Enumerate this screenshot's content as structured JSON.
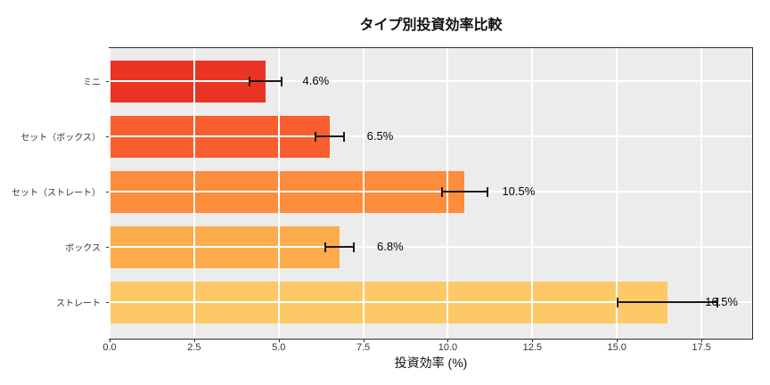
{
  "chart_data": {
    "type": "bar",
    "orientation": "horizontal",
    "title": "タイプ別投資効率比較",
    "xlabel": "投資効率 (%)",
    "ylabel": "",
    "categories": [
      "ミニ",
      "セット（ボックス）",
      "セット（ストレート）",
      "ボックス",
      "ストレート"
    ],
    "values": [
      4.6,
      6.5,
      10.5,
      6.8,
      16.5
    ],
    "errors": [
      0.5,
      0.45,
      0.7,
      0.45,
      1.5
    ],
    "value_labels": [
      "4.6%",
      "6.5%",
      "10.5%",
      "6.8%",
      "16.5%"
    ],
    "bar_colors": [
      "#EA3423",
      "#F95F2E",
      "#FB8D3C",
      "#FCAB4D",
      "#FDC967"
    ],
    "xlim": [
      0,
      19
    ],
    "xticks": [
      0,
      2.5,
      5,
      7.5,
      10,
      12.5,
      15,
      17.5
    ],
    "xtick_labels": [
      "0.0",
      "2.5",
      "5.0",
      "7.5",
      "10.0",
      "12.5",
      "15.0",
      "17.5"
    ],
    "grid": true,
    "legend": "none",
    "plot_bg_color": "#ECECEC",
    "grid_color": "#FFFFFF",
    "errorbar_color": "#1a1a1a"
  }
}
